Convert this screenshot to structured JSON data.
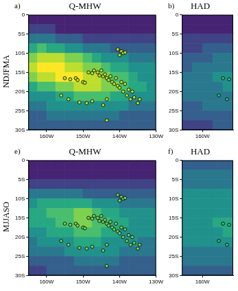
{
  "chart_data": [
    {
      "type": "heatmap",
      "label": "a)",
      "title": "Q-MHW",
      "row_label": "NDJFMA",
      "xlim": [
        -165,
        -130
      ],
      "xticks": [
        {
          "value": -160,
          "label": "160W"
        },
        {
          "value": -150,
          "label": "150W"
        },
        {
          "value": -140,
          "label": "140W"
        },
        {
          "value": -130,
          "label": "130W"
        }
      ],
      "ylim": [
        -30,
        0
      ],
      "yticks": [
        0,
        {
          "value": -5,
          "label": "5S"
        },
        {
          "value": -10,
          "label": "10S"
        },
        {
          "value": -15,
          "label": "15S"
        },
        {
          "value": -20,
          "label": "20S"
        },
        {
          "value": -25,
          "label": "25S"
        },
        {
          "value": -30,
          "label": "30S"
        }
      ],
      "color_range": [
        0,
        10
      ],
      "cells": {
        "x": [
          -163.75,
          -161.25,
          -158.75,
          -156.25,
          -153.75,
          -151.25,
          -148.75,
          -146.25,
          -143.75,
          -141.25,
          -138.75,
          -136.25,
          -133.75,
          -131.25
        ],
        "y": [
          -1.25,
          -3.75,
          -6.25,
          -8.75,
          -11.25,
          -13.75,
          -16.25,
          -18.75,
          -21.25,
          -23.75,
          -26.25,
          -28.75
        ],
        "values": [
          [
            1,
            1,
            1,
            1,
            1,
            1,
            1,
            1,
            1,
            1,
            1,
            1,
            1,
            1
          ],
          [
            2,
            2,
            2,
            1,
            1,
            1,
            1,
            1,
            1,
            1,
            1,
            1,
            1,
            1
          ],
          [
            4,
            4,
            4,
            3,
            3,
            3,
            2,
            2,
            2,
            2,
            2,
            2,
            2,
            2
          ],
          [
            6,
            7,
            6,
            6,
            5,
            5,
            4,
            4,
            4,
            3,
            3,
            3,
            3,
            3
          ],
          [
            8,
            9,
            9,
            9,
            8,
            8,
            7,
            6,
            5,
            5,
            5,
            4,
            4,
            4
          ],
          [
            9,
            10,
            10,
            10,
            9,
            9,
            8,
            8,
            7,
            6,
            6,
            5,
            5,
            5
          ],
          [
            8,
            9,
            9,
            10,
            10,
            10,
            9,
            9,
            8,
            7,
            7,
            6,
            5,
            5
          ],
          [
            6,
            7,
            7,
            8,
            8,
            9,
            9,
            9,
            8,
            8,
            7,
            6,
            6,
            5
          ],
          [
            5,
            5,
            5,
            6,
            6,
            7,
            7,
            7,
            7,
            6,
            6,
            5,
            5,
            5
          ],
          [
            4,
            4,
            5,
            5,
            5,
            5,
            5,
            5,
            5,
            5,
            5,
            4,
            4,
            4
          ],
          [
            3,
            3,
            4,
            4,
            4,
            4,
            4,
            4,
            4,
            4,
            3,
            3,
            3,
            3
          ],
          [
            3,
            3,
            3,
            3,
            3,
            3,
            3,
            3,
            3,
            3,
            3,
            3,
            3,
            3
          ]
        ]
      },
      "points": {
        "x": [
          -140.5,
          -139.5,
          -139,
          -140,
          -138.5,
          -155,
          -153.5,
          -152,
          -151.5,
          -150,
          -149.5,
          -148.5,
          -147.5,
          -147,
          -146,
          -145.5,
          -145,
          -144.5,
          -144,
          -143.5,
          -143,
          -142.5,
          -142,
          -141.5,
          -141,
          -140.5,
          -140,
          -139.5,
          -139,
          -138.5,
          -138,
          -137.5,
          -137,
          -136.5,
          -136,
          -135,
          -134.5,
          -151,
          -149,
          -147.5,
          -144.5,
          -143.5,
          -143.5,
          -156,
          -154
        ],
        "y": [
          -9,
          -9.5,
          -10,
          -10.5,
          -9.8,
          -16.5,
          -16.8,
          -16.5,
          -17,
          -17.5,
          -17.7,
          -15,
          -15.2,
          -14.5,
          -15,
          -15.8,
          -14.5,
          -16,
          -15.5,
          -16.5,
          -17,
          -16,
          -17.5,
          -18,
          -16.5,
          -18.5,
          -19,
          -17.5,
          -20,
          -18,
          -21,
          -19.5,
          -22,
          -20,
          -21.5,
          -23,
          -22,
          -22.8,
          -23,
          -22.5,
          -23.5,
          -22,
          -27.5,
          -21,
          -22
        ],
        "marker": "circle",
        "color": "#b5de2b"
      }
    },
    {
      "type": "heatmap",
      "label": "b)",
      "title": "HAD",
      "xlim": [
        -165,
        -152.5
      ],
      "xticks": [
        {
          "value": -160,
          "label": "160W"
        }
      ],
      "ylim": [
        -30,
        0
      ],
      "yticks": [
        0,
        {
          "value": -5,
          "label": "5S"
        },
        {
          "value": -10,
          "label": "10S"
        },
        {
          "value": -15,
          "label": "15S"
        },
        {
          "value": -20,
          "label": "20S"
        },
        {
          "value": -25,
          "label": "25S"
        },
        {
          "value": -30,
          "label": "30S"
        }
      ],
      "color_range": [
        0,
        10
      ],
      "cells": {
        "x": [
          -163.75,
          -161.25,
          -158.75,
          -156.25,
          -153.75
        ],
        "y": [
          -1.25,
          -3.75,
          -6.25,
          -8.75,
          -11.25,
          -13.75,
          -16.25,
          -18.75,
          -21.25,
          -23.75,
          -26.25,
          -28.75
        ],
        "values": [
          [
            1,
            1,
            1,
            1,
            1
          ],
          [
            1,
            1,
            1,
            1,
            1
          ],
          [
            2,
            2,
            2,
            2,
            2
          ],
          [
            2,
            2,
            3,
            3,
            3
          ],
          [
            3,
            3,
            3,
            4,
            4
          ],
          [
            3,
            4,
            4,
            4,
            4
          ],
          [
            4,
            4,
            4,
            5,
            5
          ],
          [
            4,
            4,
            4,
            4,
            5
          ],
          [
            4,
            4,
            4,
            4,
            4
          ],
          [
            3,
            3,
            4,
            4,
            4
          ],
          [
            3,
            3,
            3,
            3,
            3
          ],
          [
            2,
            2,
            2,
            3,
            3
          ]
        ]
      },
      "points": {
        "x": [
          -155,
          -153.5,
          -156,
          -154
        ],
        "y": [
          -16.5,
          -16.8,
          -21,
          -22
        ],
        "marker": "circle",
        "color": "#35b779"
      }
    },
    {
      "type": "heatmap",
      "label": "e)",
      "title": "Q-MHW",
      "row_label": "MJJASO",
      "xlim": [
        -165,
        -130
      ],
      "xticks": [
        {
          "value": -160,
          "label": "160W"
        },
        {
          "value": -150,
          "label": "150W"
        },
        {
          "value": -140,
          "label": "140W"
        },
        {
          "value": -130,
          "label": "130W"
        }
      ],
      "ylim": [
        -30,
        0
      ],
      "yticks": [
        0,
        {
          "value": -5,
          "label": "5S"
        },
        {
          "value": -10,
          "label": "10S"
        },
        {
          "value": -15,
          "label": "15S"
        },
        {
          "value": -20,
          "label": "20S"
        },
        {
          "value": -25,
          "label": "25S"
        },
        {
          "value": -30,
          "label": "30S"
        }
      ],
      "color_range": [
        0,
        10
      ],
      "cells": {
        "x": [
          -163.75,
          -161.25,
          -158.75,
          -156.25,
          -153.75,
          -151.25,
          -148.75,
          -146.25,
          -143.75,
          -141.25,
          -138.75,
          -136.25,
          -133.75,
          -131.25
        ],
        "y": [
          -1.25,
          -3.75,
          -6.25,
          -8.75,
          -11.25,
          -13.75,
          -16.25,
          -18.75,
          -21.25,
          -23.75,
          -26.25,
          -28.75
        ],
        "values": [
          [
            1,
            1,
            1,
            1,
            1,
            1,
            1,
            1,
            1,
            1,
            1,
            1,
            1,
            1
          ],
          [
            1,
            1,
            1,
            1,
            1,
            1,
            1,
            1,
            1,
            1,
            1,
            1,
            1,
            1
          ],
          [
            2,
            2,
            2,
            2,
            2,
            2,
            2,
            2,
            2,
            2,
            2,
            2,
            2,
            2
          ],
          [
            4,
            4,
            4,
            4,
            4,
            4,
            3,
            3,
            3,
            3,
            3,
            3,
            3,
            3
          ],
          [
            5,
            6,
            6,
            6,
            6,
            6,
            6,
            5,
            5,
            5,
            4,
            4,
            4,
            4
          ],
          [
            6,
            6,
            7,
            7,
            7,
            8,
            8,
            7,
            6,
            6,
            5,
            5,
            5,
            5
          ],
          [
            6,
            6,
            6,
            7,
            7,
            8,
            8,
            7,
            7,
            6,
            6,
            5,
            5,
            5
          ],
          [
            5,
            5,
            6,
            6,
            6,
            7,
            7,
            7,
            6,
            6,
            5,
            5,
            5,
            5
          ],
          [
            4,
            5,
            5,
            5,
            5,
            6,
            6,
            6,
            5,
            5,
            5,
            5,
            4,
            4
          ],
          [
            4,
            4,
            4,
            4,
            5,
            5,
            5,
            5,
            5,
            5,
            4,
            4,
            4,
            4
          ],
          [
            3,
            3,
            3,
            3,
            3,
            4,
            4,
            4,
            4,
            4,
            3,
            3,
            3,
            3
          ],
          [
            2,
            2,
            3,
            3,
            3,
            3,
            3,
            3,
            3,
            3,
            3,
            3,
            3,
            3
          ]
        ]
      },
      "points": {
        "x": [
          -140.5,
          -139.5,
          -139,
          -140,
          -138.5,
          -155,
          -153.5,
          -152,
          -151.5,
          -150,
          -149.5,
          -148.5,
          -147.5,
          -147,
          -146,
          -145.5,
          -145,
          -144.5,
          -144,
          -143.5,
          -143,
          -142.5,
          -142,
          -141.5,
          -141,
          -140.5,
          -140,
          -139.5,
          -139,
          -138.5,
          -138,
          -137.5,
          -137,
          -136.5,
          -136,
          -135,
          -134.5,
          -151,
          -149,
          -147.5,
          -144.5,
          -143.5,
          -143.5,
          -156,
          -154
        ],
        "y": [
          -9,
          -9.5,
          -10,
          -10.5,
          -9.8,
          -16.5,
          -16.8,
          -16.5,
          -17,
          -17.5,
          -17.7,
          -15,
          -15.2,
          -14.5,
          -15,
          -15.8,
          -14.5,
          -16,
          -15.5,
          -16.5,
          -17,
          -16,
          -17.5,
          -18,
          -16.5,
          -18.5,
          -19,
          -17.5,
          -20,
          -18,
          -21,
          -19.5,
          -22,
          -20,
          -21.5,
          -23,
          -22,
          -22.8,
          -23,
          -22.5,
          -23.5,
          -22,
          -27.5,
          -21,
          -22
        ],
        "marker": "circle",
        "color": "#6ece58"
      }
    },
    {
      "type": "heatmap",
      "label": "f)",
      "title": "HAD",
      "xlim": [
        -165,
        -152.5
      ],
      "xticks": [
        {
          "value": -160,
          "label": "160W"
        }
      ],
      "ylim": [
        -30,
        0
      ],
      "yticks": [
        0,
        {
          "value": -5,
          "label": "5S"
        },
        {
          "value": -10,
          "label": "10S"
        },
        {
          "value": -15,
          "label": "15S"
        },
        {
          "value": -20,
          "label": "20S"
        },
        {
          "value": -25,
          "label": "25S"
        },
        {
          "value": -30,
          "label": "30S"
        }
      ],
      "color_range": [
        0,
        10
      ],
      "cells": {
        "x": [
          -163.75,
          -161.25,
          -158.75,
          -156.25,
          -153.75
        ],
        "y": [
          -1.25,
          -3.75,
          -6.25,
          -8.75,
          -11.25,
          -13.75,
          -16.25,
          -18.75,
          -21.25,
          -23.75,
          -26.25,
          -28.75
        ],
        "values": [
          [
            3,
            3,
            3,
            3,
            3
          ],
          [
            4,
            4,
            4,
            4,
            4
          ],
          [
            4,
            4,
            4,
            4,
            4
          ],
          [
            5,
            5,
            5,
            5,
            5
          ],
          [
            5,
            5,
            5,
            5,
            5
          ],
          [
            5,
            5,
            5,
            5,
            5
          ],
          [
            5,
            5,
            5,
            6,
            6
          ],
          [
            5,
            5,
            5,
            5,
            6
          ],
          [
            5,
            5,
            5,
            5,
            5
          ],
          [
            4,
            4,
            4,
            4,
            4
          ],
          [
            4,
            4,
            4,
            4,
            4
          ],
          [
            3,
            3,
            3,
            3,
            3
          ]
        ]
      },
      "points": {
        "x": [
          -155,
          -153.5,
          -156,
          -154
        ],
        "y": [
          -16.5,
          -16.8,
          -21,
          -22
        ],
        "marker": "circle",
        "color": "#35b779"
      }
    }
  ]
}
